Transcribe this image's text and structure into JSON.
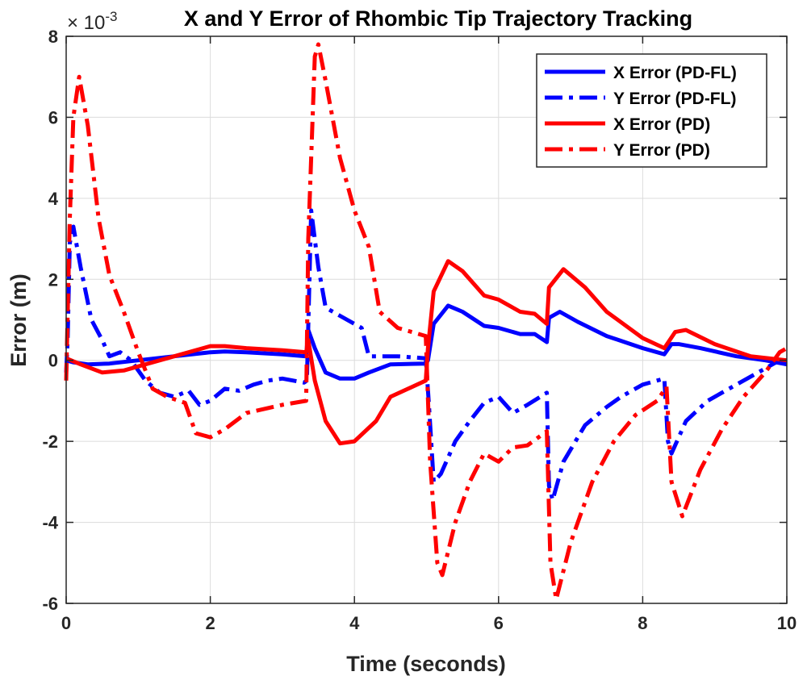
{
  "chart_data": {
    "type": "line",
    "title": "X and Y Error of Rhombic Tip Trajectory Tracking",
    "xlabel": "Time (seconds)",
    "ylabel": "Error (m)",
    "y_multiplier": "× 10",
    "y_multiplier_exp": "-3",
    "xlim": [
      0,
      10
    ],
    "ylim": [
      -6,
      8
    ],
    "xticks": [
      "0",
      "2",
      "4",
      "6",
      "8",
      "10"
    ],
    "yticks": [
      "-6",
      "-4",
      "-2",
      "0",
      "2",
      "4",
      "6",
      "8"
    ],
    "grid": true,
    "legend_position": "top-right",
    "series": [
      {
        "name": "X Error (PD-FL)",
        "color": "#0000ff",
        "style": "solid",
        "points": [
          [
            0,
            0.0
          ],
          [
            0.1,
            -0.05
          ],
          [
            0.3,
            -0.1
          ],
          [
            0.6,
            -0.08
          ],
          [
            1.0,
            0.0
          ],
          [
            1.5,
            0.1
          ],
          [
            2.0,
            0.2
          ],
          [
            2.2,
            0.22
          ],
          [
            2.5,
            0.2
          ],
          [
            3.0,
            0.15
          ],
          [
            3.33,
            0.1
          ],
          [
            3.36,
            0.75
          ],
          [
            3.45,
            0.3
          ],
          [
            3.6,
            -0.3
          ],
          [
            3.8,
            -0.45
          ],
          [
            4.0,
            -0.45
          ],
          [
            4.2,
            -0.3
          ],
          [
            4.5,
            -0.1
          ],
          [
            4.99,
            -0.08
          ],
          [
            5.02,
            0.0
          ],
          [
            5.1,
            0.9
          ],
          [
            5.3,
            1.35
          ],
          [
            5.5,
            1.2
          ],
          [
            5.8,
            0.85
          ],
          [
            6.0,
            0.8
          ],
          [
            6.3,
            0.65
          ],
          [
            6.5,
            0.65
          ],
          [
            6.67,
            0.45
          ],
          [
            6.7,
            1.05
          ],
          [
            6.85,
            1.2
          ],
          [
            7.1,
            0.95
          ],
          [
            7.5,
            0.6
          ],
          [
            8.0,
            0.3
          ],
          [
            8.3,
            0.15
          ],
          [
            8.4,
            0.4
          ],
          [
            8.5,
            0.4
          ],
          [
            8.8,
            0.3
          ],
          [
            9.3,
            0.1
          ],
          [
            9.7,
            0.0
          ],
          [
            10.0,
            -0.1
          ]
        ]
      },
      {
        "name": "Y Error (PD-FL)",
        "color": "#0000ff",
        "style": "dashdot",
        "points": [
          [
            0,
            -0.3
          ],
          [
            0.02,
            0.5
          ],
          [
            0.05,
            2.9
          ],
          [
            0.1,
            3.3
          ],
          [
            0.2,
            2.3
          ],
          [
            0.35,
            1.0
          ],
          [
            0.5,
            0.5
          ],
          [
            0.6,
            0.1
          ],
          [
            0.75,
            0.2
          ],
          [
            0.9,
            0.0
          ],
          [
            1.1,
            -0.5
          ],
          [
            1.3,
            -0.8
          ],
          [
            1.5,
            -0.9
          ],
          [
            1.7,
            -0.75
          ],
          [
            1.85,
            -1.1
          ],
          [
            2.0,
            -1.0
          ],
          [
            2.2,
            -0.7
          ],
          [
            2.4,
            -0.75
          ],
          [
            2.6,
            -0.6
          ],
          [
            2.8,
            -0.5
          ],
          [
            3.0,
            -0.45
          ],
          [
            3.3,
            -0.55
          ],
          [
            3.34,
            -0.5
          ],
          [
            3.4,
            3.7
          ],
          [
            3.5,
            2.3
          ],
          [
            3.6,
            1.3
          ],
          [
            3.8,
            1.1
          ],
          [
            4.0,
            0.9
          ],
          [
            4.1,
            0.8
          ],
          [
            4.2,
            0.1
          ],
          [
            4.35,
            0.1
          ],
          [
            4.6,
            0.1
          ],
          [
            4.99,
            0.05
          ],
          [
            5.03,
            -1.0
          ],
          [
            5.1,
            -3.0
          ],
          [
            5.2,
            -2.8
          ],
          [
            5.4,
            -2.0
          ],
          [
            5.6,
            -1.5
          ],
          [
            5.8,
            -1.05
          ],
          [
            6.0,
            -0.9
          ],
          [
            6.2,
            -1.3
          ],
          [
            6.4,
            -1.1
          ],
          [
            6.67,
            -0.8
          ],
          [
            6.7,
            -3.1
          ],
          [
            6.75,
            -3.45
          ],
          [
            6.9,
            -2.5
          ],
          [
            7.2,
            -1.6
          ],
          [
            7.5,
            -1.15
          ],
          [
            7.7,
            -0.9
          ],
          [
            8.0,
            -0.6
          ],
          [
            8.3,
            -0.45
          ],
          [
            8.35,
            -2.0
          ],
          [
            8.4,
            -2.3
          ],
          [
            8.6,
            -1.5
          ],
          [
            8.9,
            -1.0
          ],
          [
            9.3,
            -0.6
          ],
          [
            9.6,
            -0.3
          ],
          [
            9.85,
            -0.05
          ],
          [
            10.0,
            0.0
          ]
        ]
      },
      {
        "name": "X Error (PD)",
        "color": "#ff0000",
        "style": "solid",
        "points": [
          [
            0,
            0.05
          ],
          [
            0.2,
            -0.1
          ],
          [
            0.5,
            -0.3
          ],
          [
            0.8,
            -0.25
          ],
          [
            1.1,
            -0.1
          ],
          [
            1.5,
            0.1
          ],
          [
            2.0,
            0.35
          ],
          [
            2.2,
            0.35
          ],
          [
            2.5,
            0.3
          ],
          [
            3.0,
            0.25
          ],
          [
            3.33,
            0.2
          ],
          [
            3.36,
            0.5
          ],
          [
            3.45,
            -0.5
          ],
          [
            3.6,
            -1.5
          ],
          [
            3.8,
            -2.05
          ],
          [
            4.0,
            -2.0
          ],
          [
            4.3,
            -1.5
          ],
          [
            4.5,
            -0.9
          ],
          [
            4.99,
            -0.5
          ],
          [
            5.02,
            0.3
          ],
          [
            5.1,
            1.7
          ],
          [
            5.3,
            2.45
          ],
          [
            5.5,
            2.2
          ],
          [
            5.8,
            1.6
          ],
          [
            6.0,
            1.5
          ],
          [
            6.3,
            1.2
          ],
          [
            6.5,
            1.15
          ],
          [
            6.67,
            0.9
          ],
          [
            6.7,
            1.8
          ],
          [
            6.9,
            2.25
          ],
          [
            7.2,
            1.8
          ],
          [
            7.5,
            1.2
          ],
          [
            8.0,
            0.55
          ],
          [
            8.3,
            0.3
          ],
          [
            8.45,
            0.7
          ],
          [
            8.6,
            0.75
          ],
          [
            9.0,
            0.4
          ],
          [
            9.5,
            0.1
          ],
          [
            10.0,
            0.0
          ]
        ]
      },
      {
        "name": "Y Error (PD)",
        "color": "#ff0000",
        "style": "dashdot",
        "points": [
          [
            0,
            -0.5
          ],
          [
            0.05,
            3.5
          ],
          [
            0.1,
            6.0
          ],
          [
            0.18,
            7.0
          ],
          [
            0.3,
            5.8
          ],
          [
            0.45,
            3.5
          ],
          [
            0.6,
            2.1
          ],
          [
            0.8,
            1.2
          ],
          [
            1.0,
            0.2
          ],
          [
            1.2,
            -0.7
          ],
          [
            1.4,
            -0.9
          ],
          [
            1.65,
            -1.05
          ],
          [
            1.8,
            -1.8
          ],
          [
            2.0,
            -1.9
          ],
          [
            2.2,
            -1.7
          ],
          [
            2.5,
            -1.3
          ],
          [
            3.0,
            -1.1
          ],
          [
            3.33,
            -1.0
          ],
          [
            3.36,
            3.0
          ],
          [
            3.45,
            7.5
          ],
          [
            3.5,
            7.8
          ],
          [
            3.6,
            6.9
          ],
          [
            3.8,
            5.0
          ],
          [
            4.0,
            3.7
          ],
          [
            4.2,
            2.8
          ],
          [
            4.35,
            1.2
          ],
          [
            4.6,
            0.8
          ],
          [
            4.99,
            0.6
          ],
          [
            5.05,
            -2.5
          ],
          [
            5.15,
            -5.0
          ],
          [
            5.22,
            -5.3
          ],
          [
            5.4,
            -4.0
          ],
          [
            5.6,
            -3.0
          ],
          [
            5.8,
            -2.3
          ],
          [
            6.0,
            -2.5
          ],
          [
            6.2,
            -2.15
          ],
          [
            6.4,
            -2.1
          ],
          [
            6.67,
            -1.75
          ],
          [
            6.72,
            -5.0
          ],
          [
            6.8,
            -5.9
          ],
          [
            7.0,
            -4.5
          ],
          [
            7.3,
            -3.0
          ],
          [
            7.6,
            -2.0
          ],
          [
            7.9,
            -1.35
          ],
          [
            8.2,
            -1.0
          ],
          [
            8.33,
            -0.65
          ],
          [
            8.4,
            -3.0
          ],
          [
            8.55,
            -3.85
          ],
          [
            8.8,
            -2.7
          ],
          [
            9.1,
            -1.7
          ],
          [
            9.4,
            -0.9
          ],
          [
            9.7,
            -0.3
          ],
          [
            9.9,
            0.2
          ],
          [
            10.0,
            0.3
          ]
        ]
      }
    ]
  }
}
